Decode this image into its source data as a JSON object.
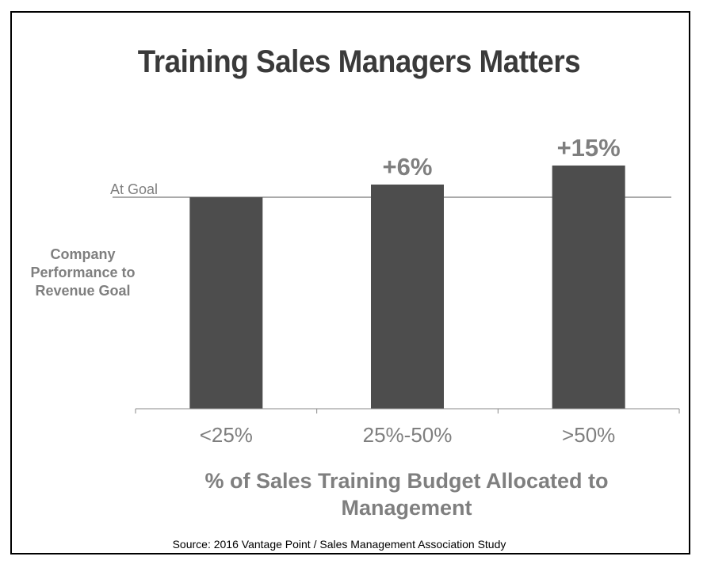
{
  "chart_data": {
    "type": "bar",
    "title": "Training Sales Managers Matters",
    "categories": [
      "<25%",
      "25%-50%",
      ">50%"
    ],
    "values": [
      100,
      106,
      115
    ],
    "data_labels": [
      "",
      "+6%",
      "+15%"
    ],
    "reference_line": {
      "label": "At Goal",
      "value": 100
    },
    "ylabel": "Company Performance to Revenue Goal",
    "xlabel": "% of Sales Training Budget Allocated to Management",
    "ylim": [
      0,
      120
    ],
    "grid": false,
    "legend": "none",
    "bar_color": "#4d4d4d",
    "label_color": "#7f7f7f"
  },
  "source": "Source: 2016  Vantage Point / Sales Management Association Study"
}
